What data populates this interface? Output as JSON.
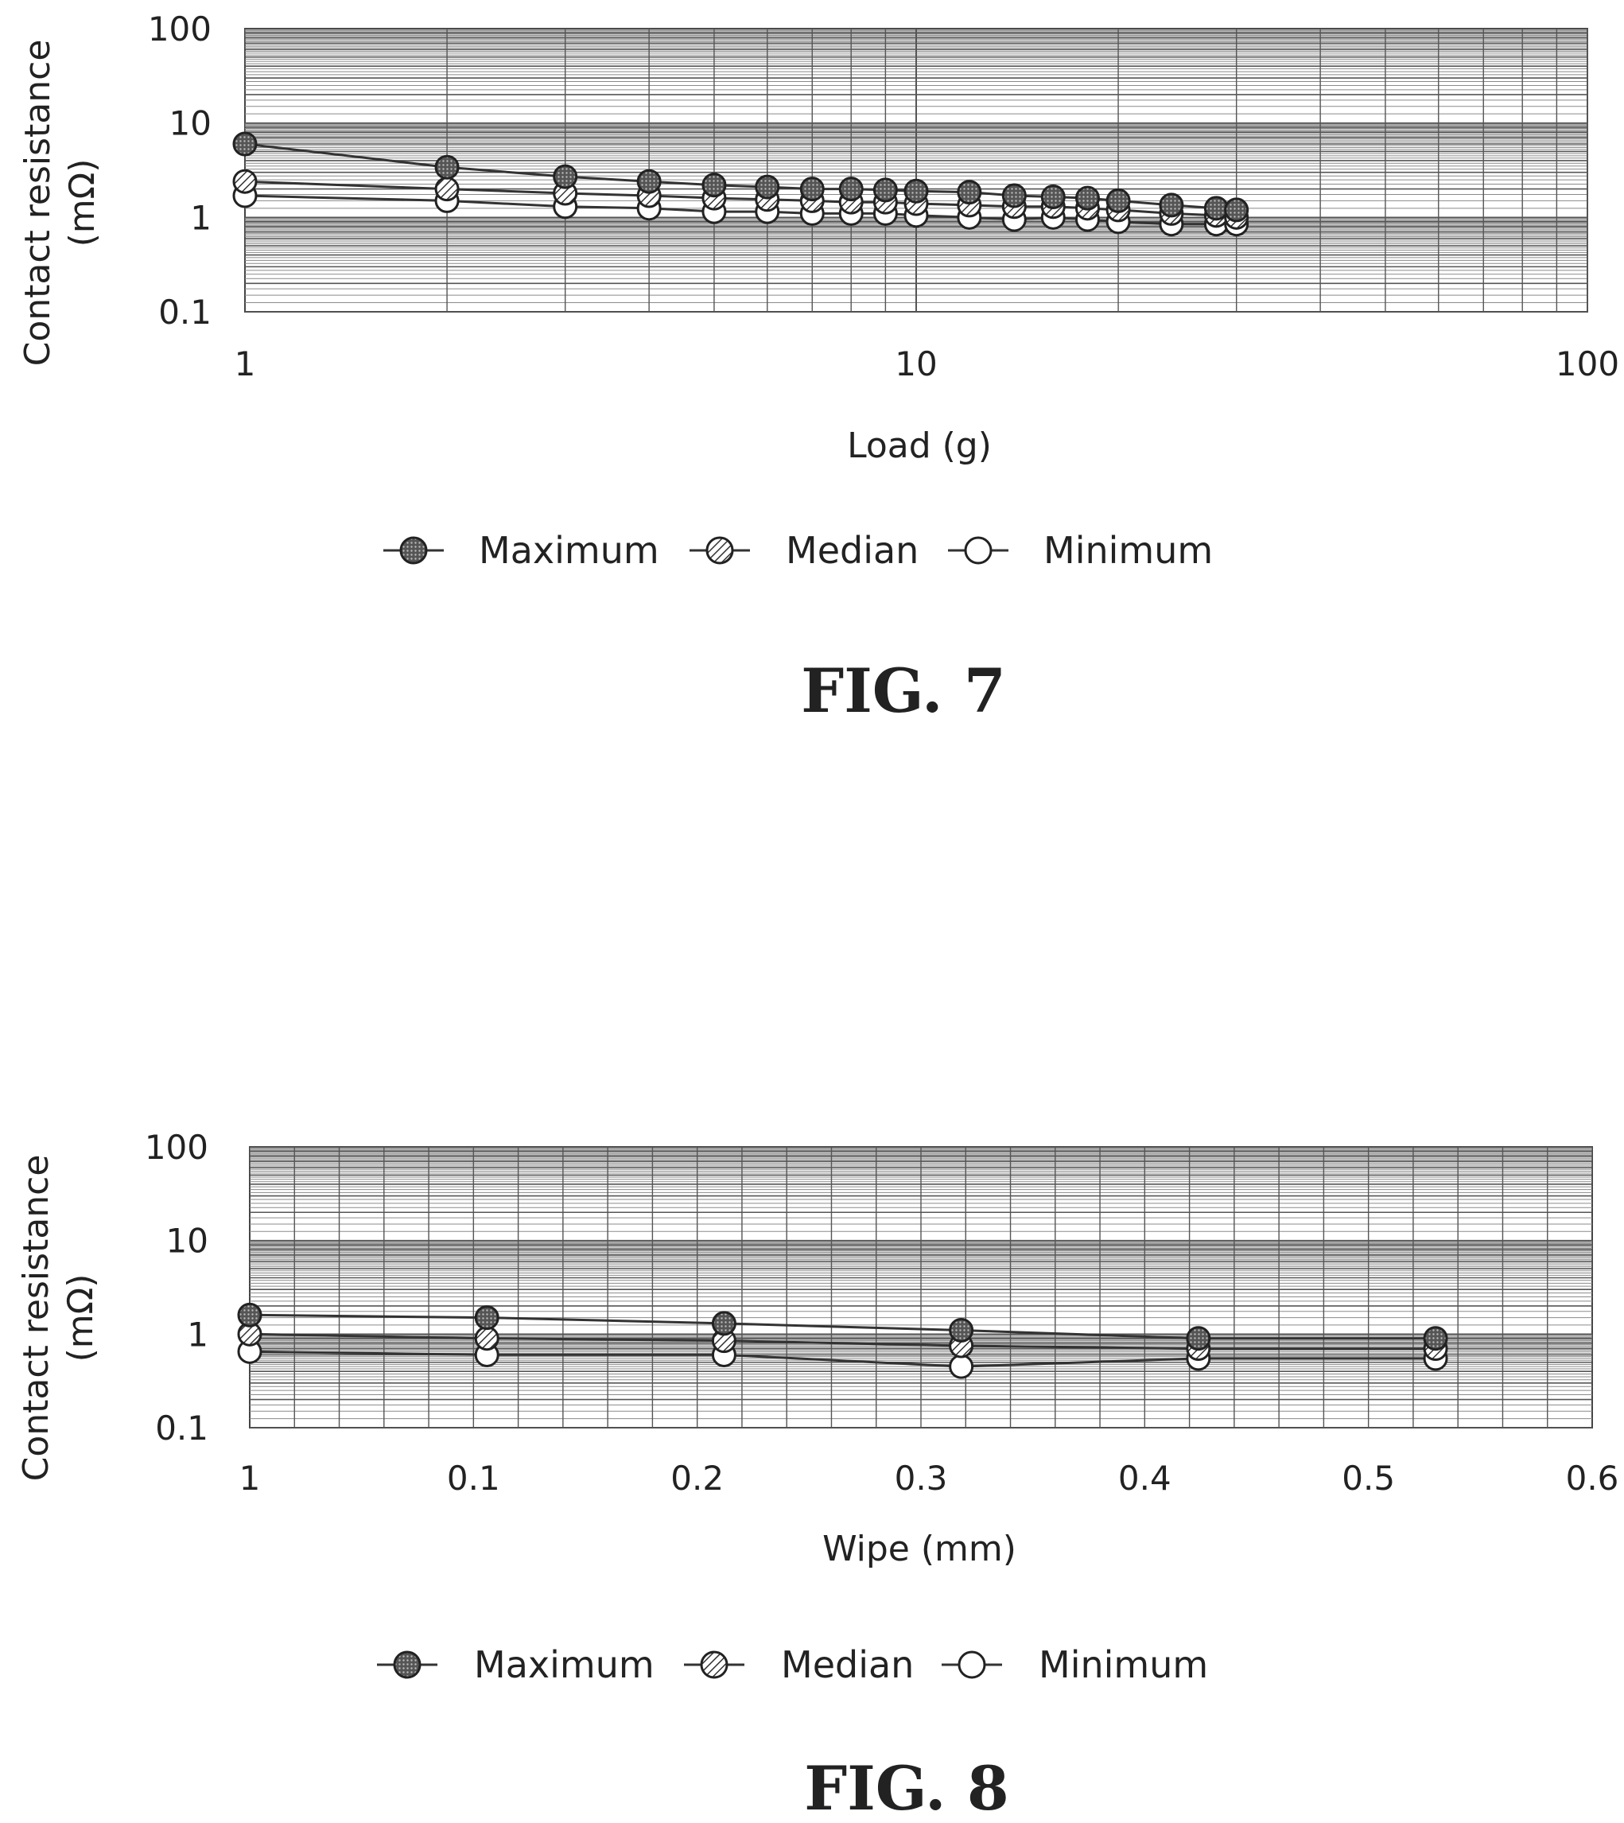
{
  "chart_data": [
    {
      "type": "line",
      "figure_label": "FIG. 7",
      "xlabel": "Load (g)",
      "ylabel": [
        "Contact resistance",
        "(mΩ)"
      ],
      "x_scale": "log",
      "y_scale": "log",
      "xlim": [
        1,
        100
      ],
      "ylim": [
        0.1,
        100
      ],
      "x_tick_labels": [
        "1",
        "10",
        "100"
      ],
      "y_tick_labels": [
        "0.1",
        "1",
        "10",
        "100"
      ],
      "grid": true,
      "legend_position": "bottom",
      "x": [
        1,
        2,
        3,
        4,
        5,
        6,
        7,
        8,
        9,
        10,
        12,
        14,
        16,
        18,
        20,
        24,
        28,
        30
      ],
      "series": [
        {
          "name": "Maximum",
          "marker": "filled",
          "values": [
            6.0,
            3.4,
            2.7,
            2.4,
            2.2,
            2.1,
            2.0,
            2.0,
            1.95,
            1.9,
            1.85,
            1.7,
            1.65,
            1.6,
            1.5,
            1.35,
            1.25,
            1.2
          ]
        },
        {
          "name": "Median",
          "marker": "hatched",
          "values": [
            2.4,
            2.0,
            1.8,
            1.7,
            1.6,
            1.55,
            1.5,
            1.45,
            1.45,
            1.4,
            1.35,
            1.3,
            1.3,
            1.25,
            1.2,
            1.1,
            1.05,
            1.0
          ]
        },
        {
          "name": "Minimum",
          "marker": "open",
          "values": [
            1.7,
            1.5,
            1.3,
            1.25,
            1.15,
            1.15,
            1.1,
            1.1,
            1.1,
            1.05,
            1.0,
            0.95,
            1.0,
            0.95,
            0.9,
            0.85,
            0.85,
            0.85
          ]
        }
      ]
    },
    {
      "type": "line",
      "figure_label": "FIG. 8",
      "xlabel": "Wipe (mm)",
      "ylabel": [
        "Contact resistance",
        "(mΩ)"
      ],
      "y_scale": "log",
      "xlim": [
        0,
        0.6
      ],
      "ylim": [
        0.1,
        100
      ],
      "x_tick_labels": [
        "1",
        "0.1",
        "0.2",
        "0.3",
        "0.4",
        "0.5",
        "0.6"
      ],
      "y_tick_labels": [
        "0.1",
        "1",
        "10",
        "100"
      ],
      "grid": true,
      "legend_position": "bottom",
      "x": [
        0,
        0.106,
        0.212,
        0.318,
        0.424,
        0.53
      ],
      "series": [
        {
          "name": "Maximum",
          "marker": "filled",
          "values": [
            1.6,
            1.5,
            1.3,
            1.1,
            0.9,
            0.9
          ]
        },
        {
          "name": "Median",
          "marker": "hatched",
          "values": [
            1.0,
            0.9,
            0.85,
            0.75,
            0.7,
            0.7
          ]
        },
        {
          "name": "Minimum",
          "marker": "open",
          "values": [
            0.65,
            0.6,
            0.6,
            0.45,
            0.55,
            0.55
          ]
        }
      ]
    }
  ]
}
